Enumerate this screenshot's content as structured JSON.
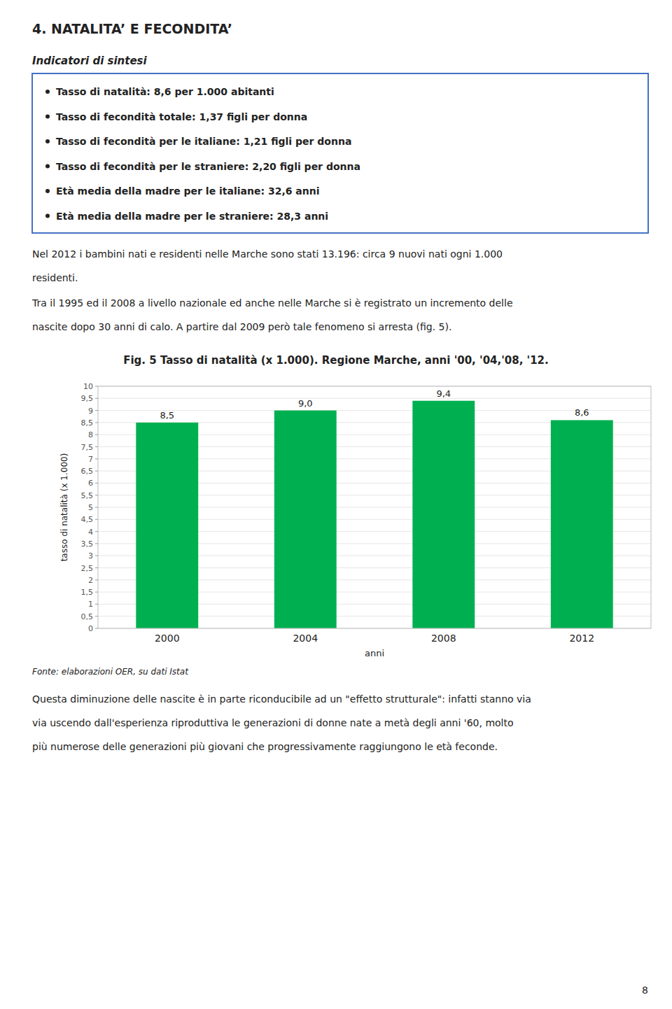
{
  "title": "4. NATALITA’ E FECONDITA’",
  "subtitle": "Indicatori di sintesi",
  "bullets": [
    "Tasso di natalità: 8,6 per 1.000 abitanti",
    "Tasso di fecondità totale: 1,37 figli per donna",
    "Tasso di fecondità per le italiane: 1,21 figli per donna",
    "Tasso di fecondità per le straniere: 2,20 figli per donna",
    "Età media della madre per le italiane: 32,6 anni",
    "Età media della madre per le straniere: 28,3 anni"
  ],
  "paragraphs_before": [
    [
      "Nel 2012 i bambini nati e residenti nelle Marche sono stati 13.196: circa 9 nuovi nati ogni 1.000",
      "residenti."
    ],
    [
      "Tra il 1995 ed il 2008 a livello nazionale ed anche nelle Marche si è registrato un incremento delle",
      "nascite dopo 30 anni di calo. A partire dal 2009 però tale fenomeno si arresta (fig. 5)."
    ]
  ],
  "source": "Fonte: elaborazioni OER, su dati Istat",
  "paragraphs_after": [
    [
      "Questa diminuzione delle nascite è in parte riconducibile ad un \"effetto strutturale\": infatti stanno via",
      "via uscendo dall'esperienza riproduttiva le generazioni di donne nate a metà degli anni '60, molto",
      "più numerose delle generazioni più giovani che progressivamente raggiungono le età feconde."
    ]
  ],
  "page_number": "8",
  "chart_data": {
    "type": "bar",
    "title": "Fig. 5 Tasso di natalità (x 1.000). Regione Marche, anni '00, '04,'08, '12.",
    "categories": [
      "2000",
      "2004",
      "2008",
      "2012"
    ],
    "values": [
      8.5,
      9.0,
      9.4,
      8.6
    ],
    "value_labels": [
      "8,5",
      "9,0",
      "9,4",
      "8,6"
    ],
    "data_labels": true,
    "color": "#00B050",
    "xlabel": "anni",
    "ylabel": "tasso di natalità (x 1.000)",
    "ylim": [
      0,
      10
    ],
    "yticks": [
      0,
      {
        "value": 0.5,
        "label": "0,5"
      },
      1,
      {
        "value": 1.5,
        "label": "1,5"
      },
      2,
      {
        "value": 2.5,
        "label": "2,5"
      },
      3,
      {
        "value": 3.5,
        "label": "3,5"
      },
      4,
      {
        "value": 4.5,
        "label": "4,5"
      },
      5,
      {
        "value": 5.5,
        "label": "5,5"
      },
      6,
      {
        "value": 6.5,
        "label": "6,5"
      },
      7,
      {
        "value": 7.5,
        "label": "7,5"
      },
      8,
      {
        "value": 8.5,
        "label": "8,5"
      },
      9,
      {
        "value": 9.5,
        "label": "9,5"
      },
      10
    ],
    "grid": true
  }
}
